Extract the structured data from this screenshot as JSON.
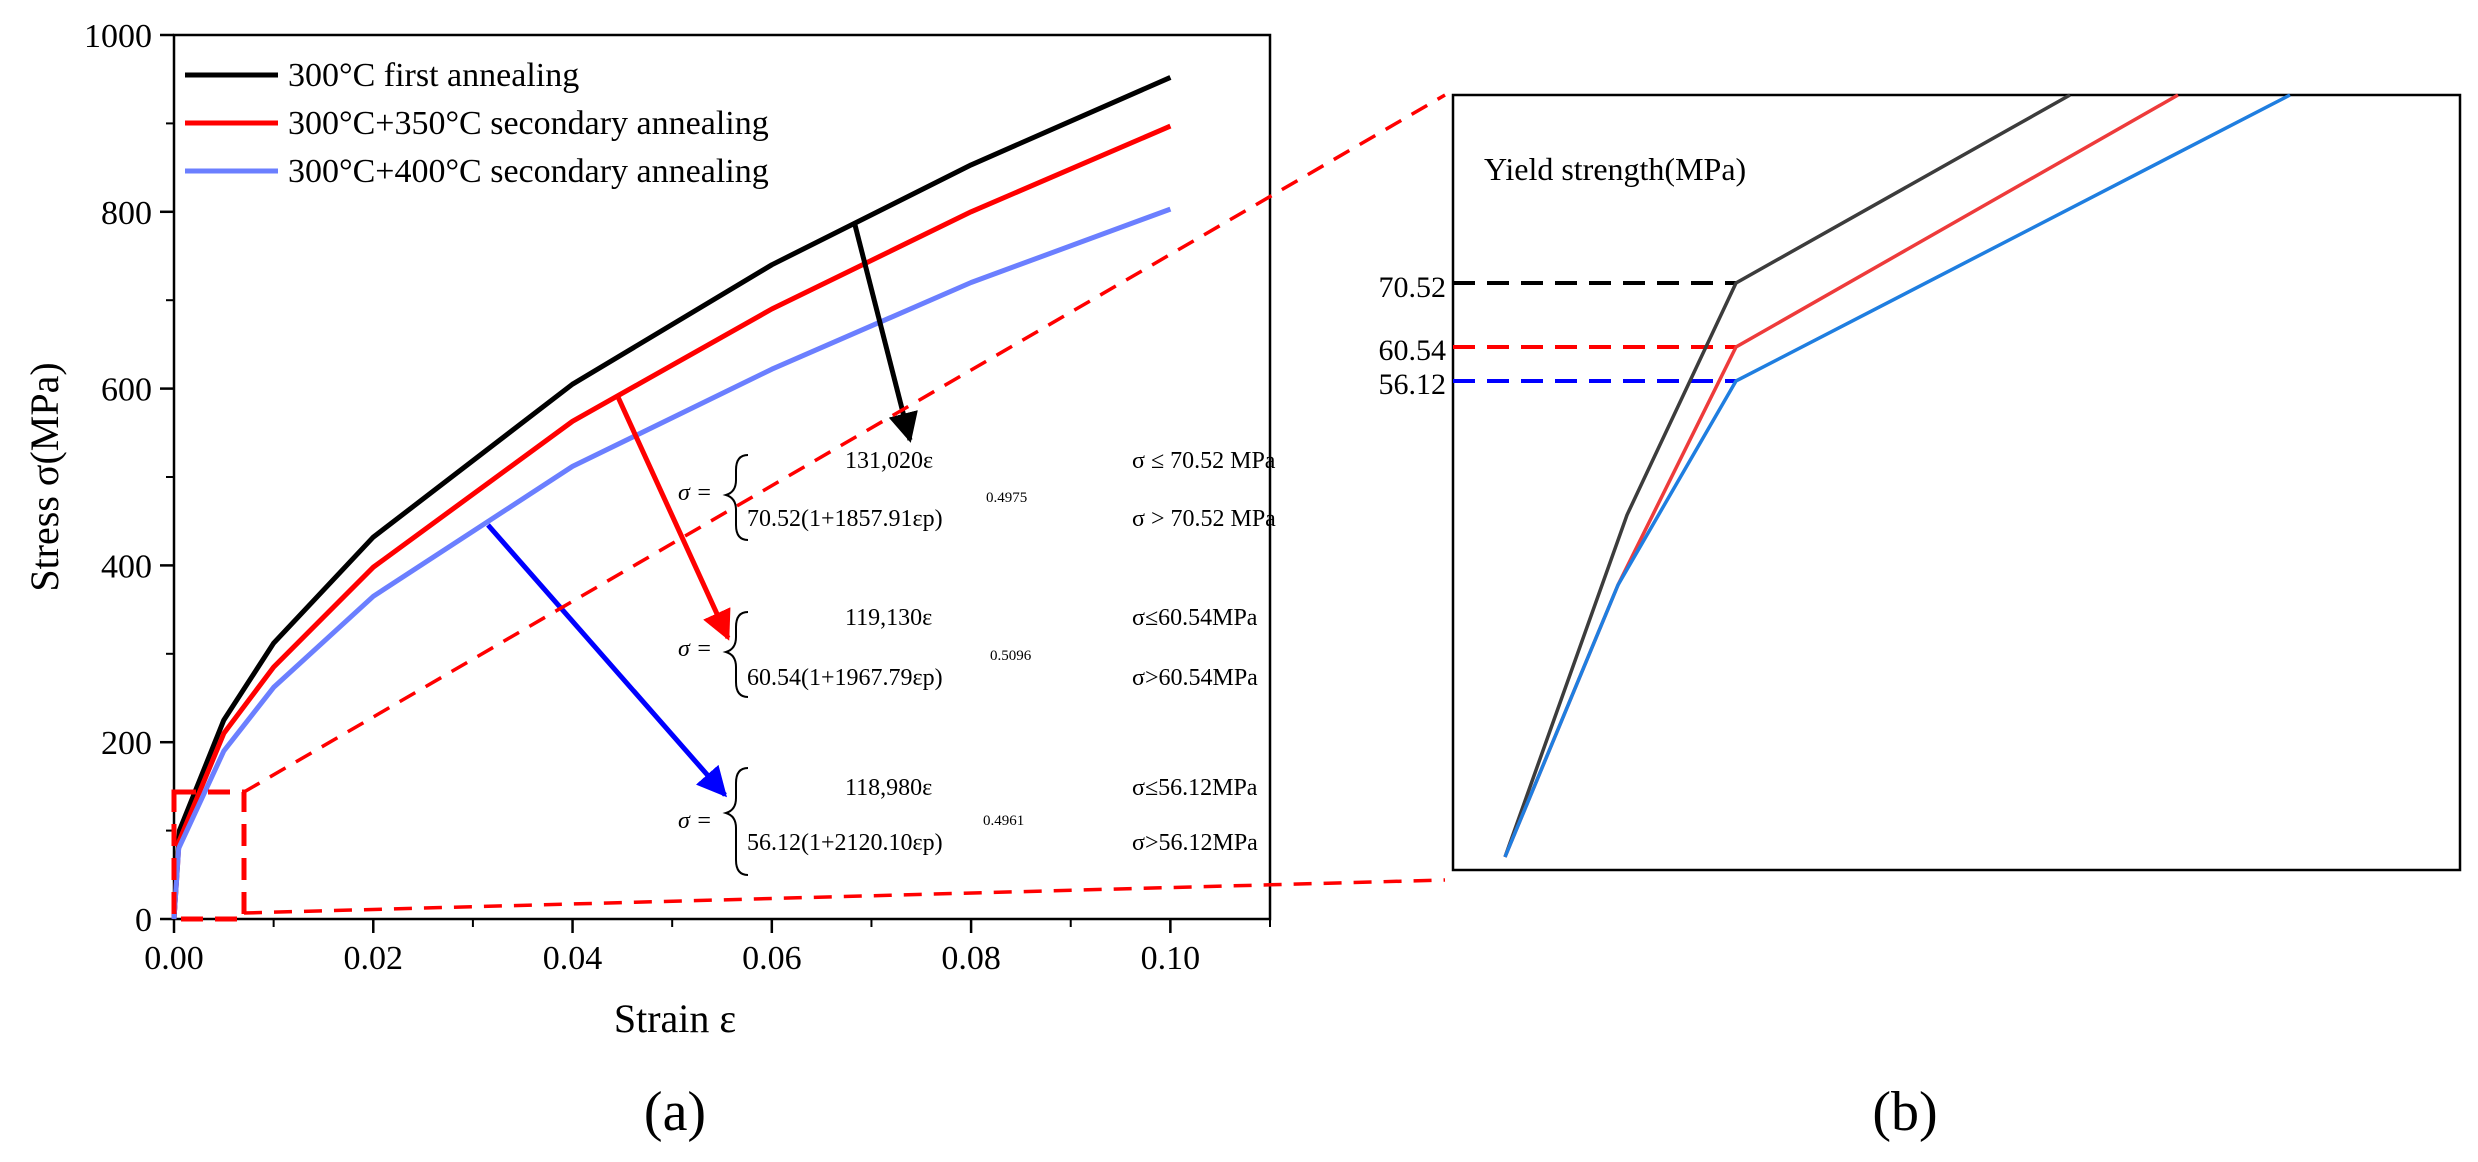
{
  "colors": {
    "black": "#000000",
    "red": "#ff0000",
    "blue_light": "#6b7fff",
    "blue_arrow": "#0000ff",
    "zoom_gray": "#3c3c3c",
    "zoom_red": "#ee3b3b",
    "zoom_blue": "#1f7ee0",
    "dash_red": "#ff0000",
    "dash_blue": "#0000ff"
  },
  "chart_data": [
    {
      "id": "a",
      "type": "line",
      "panel_label": "(a)",
      "xlabel": "Strain ε",
      "ylabel": "Stress σ(MPa)",
      "xlim": [
        0,
        0.11
      ],
      "ylim": [
        0,
        1000
      ],
      "xticks": [
        "0.00",
        "0.02",
        "0.04",
        "0.06",
        "0.08",
        "0.10"
      ],
      "yticks": [
        "0",
        "200",
        "400",
        "600",
        "800",
        "1000"
      ],
      "legend_position": "top-left",
      "series": [
        {
          "name": "300°C first annealing",
          "color": "#000000",
          "x": [
            0,
            0.00054,
            0.005,
            0.01,
            0.02,
            0.04,
            0.06,
            0.08,
            0.1
          ],
          "y": [
            0,
            100,
            225,
            312,
            432,
            605,
            740,
            853,
            952
          ]
        },
        {
          "name": "300°C+350°C secondary annealing",
          "color": "#ff0000",
          "x": [
            0,
            0.00051,
            0.005,
            0.01,
            0.02,
            0.04,
            0.06,
            0.08,
            0.1
          ],
          "y": [
            0,
            88,
            210,
            285,
            398,
            563,
            690,
            800,
            897
          ]
        },
        {
          "name": "300°C+400°C secondary annealing",
          "color": "#6b7fff",
          "x": [
            0,
            0.00047,
            0.005,
            0.01,
            0.02,
            0.04,
            0.06,
            0.08,
            0.1
          ],
          "y": [
            0,
            80,
            190,
            262,
            365,
            512,
            622,
            720,
            803
          ]
        }
      ],
      "equations": [
        {
          "id": "black",
          "lhs": "σ =",
          "line1": "131,020ε",
          "cond1": "σ ≤ 70.52 MPa",
          "line2": "70.52(1+1857.91εp)",
          "exponent": "0.4975",
          "cond2": "σ > 70.52 MPa"
        },
        {
          "id": "red",
          "lhs": "σ =",
          "line1": "119,130ε",
          "cond1": "σ≤60.54MPa",
          "line2": "60.54(1+1967.79εp)",
          "exponent": "0.5096",
          "cond2": "σ>60.54MPa"
        },
        {
          "id": "blue",
          "lhs": "σ =",
          "line1": "118,980ε",
          "cond1": "σ≤56.12MPa",
          "line2": "56.12(1+2120.10εp)",
          "exponent": "0.4961",
          "cond2": "σ>56.12MPa"
        }
      ]
    },
    {
      "id": "b",
      "type": "line",
      "panel_label": "(b)",
      "title": "Yield strength(MPa)",
      "description_note": "zoomed view of initial linear region",
      "yield_values": [
        "70.52",
        "60.54",
        "56.12"
      ],
      "series": [
        {
          "name": "300°C first annealing",
          "color": "#3c3c3c",
          "yield": 70.52
        },
        {
          "name": "300°C+350°C secondary annealing",
          "color": "#ee3b3b",
          "yield": 60.54
        },
        {
          "name": "300°C+400°C secondary annealing",
          "color": "#1f7ee0",
          "yield": 56.12
        }
      ]
    }
  ]
}
